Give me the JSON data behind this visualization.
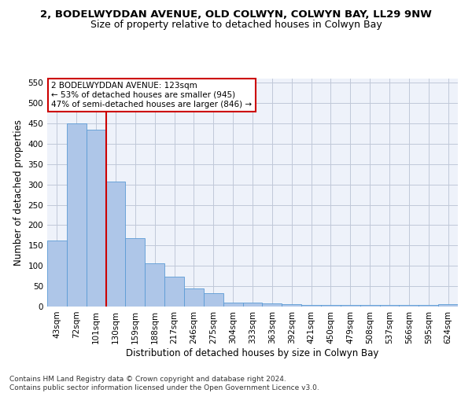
{
  "title": "2, BODELWYDDAN AVENUE, OLD COLWYN, COLWYN BAY, LL29 9NW",
  "subtitle": "Size of property relative to detached houses in Colwyn Bay",
  "xlabel": "Distribution of detached houses by size in Colwyn Bay",
  "ylabel": "Number of detached properties",
  "categories": [
    "43sqm",
    "72sqm",
    "101sqm",
    "130sqm",
    "159sqm",
    "188sqm",
    "217sqm",
    "246sqm",
    "275sqm",
    "304sqm",
    "333sqm",
    "363sqm",
    "392sqm",
    "421sqm",
    "450sqm",
    "479sqm",
    "508sqm",
    "537sqm",
    "566sqm",
    "595sqm",
    "624sqm"
  ],
  "values": [
    163,
    450,
    435,
    307,
    168,
    106,
    74,
    44,
    33,
    10,
    9,
    8,
    5,
    4,
    4,
    4,
    4,
    4,
    4,
    4,
    5
  ],
  "bar_color": "#aec6e8",
  "bar_edge_color": "#5b9bd5",
  "vline_x": 2.5,
  "vline_color": "#cc0000",
  "annotation_line1": "2 BODELWYDDAN AVENUE: 123sqm",
  "annotation_line2": "← 53% of detached houses are smaller (945)",
  "annotation_line3": "47% of semi-detached houses are larger (846) →",
  "annotation_box_color": "#ffffff",
  "annotation_box_edge": "#cc0000",
  "ylim": [
    0,
    560
  ],
  "yticks": [
    0,
    50,
    100,
    150,
    200,
    250,
    300,
    350,
    400,
    450,
    500,
    550
  ],
  "footnote": "Contains HM Land Registry data © Crown copyright and database right 2024.\nContains public sector information licensed under the Open Government Licence v3.0.",
  "bg_color": "#eef2fa",
  "grid_color": "#c0c8d8",
  "title_fontsize": 9.5,
  "subtitle_fontsize": 9,
  "axis_label_fontsize": 8.5,
  "tick_fontsize": 7.5,
  "annotation_fontsize": 7.5,
  "footnote_fontsize": 6.5
}
